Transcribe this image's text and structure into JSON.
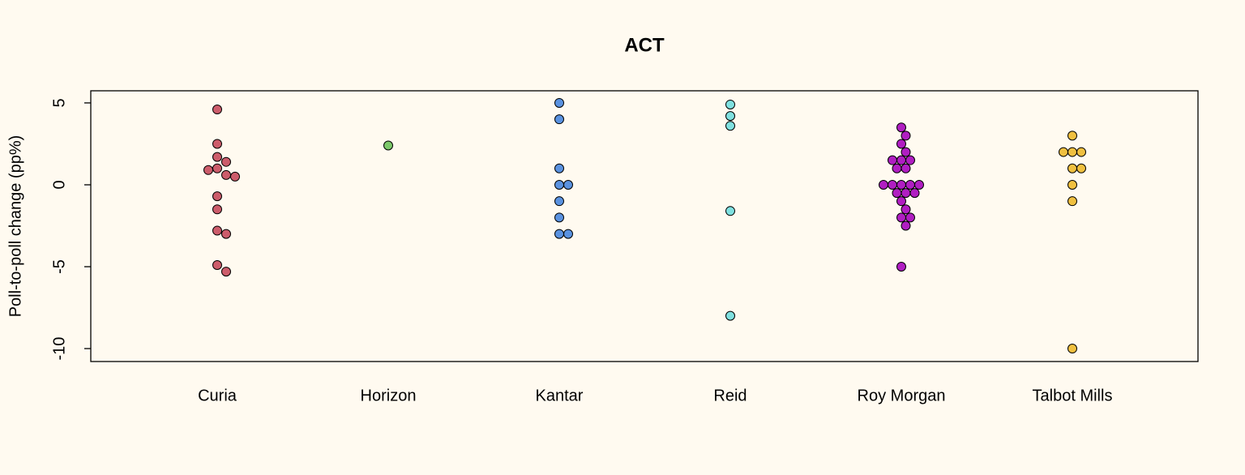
{
  "chart_data": {
    "type": "strip",
    "title": "ACT",
    "y_label": "Poll-to-poll change (pp%)",
    "ylim": [
      -10.79,
      5.74
    ],
    "yticks": [
      -10,
      -5,
      0,
      5
    ],
    "series": [
      {
        "name": "Curia",
        "color": "#cc5c6b",
        "values": [
          4.6,
          2.5,
          1.7,
          1.4,
          1.0,
          0.9,
          0.6,
          0.5,
          -0.7,
          -1.5,
          -2.8,
          -3.0,
          -4.9,
          -5.3
        ]
      },
      {
        "name": "Horizon",
        "color": "#7cc86a",
        "values": [
          2.4
        ]
      },
      {
        "name": "Kantar",
        "color": "#5a92e0",
        "values": [
          5,
          4,
          1,
          0,
          0,
          -1,
          -2,
          -3,
          -3
        ]
      },
      {
        "name": "Reid",
        "color": "#7fe0e0",
        "values": [
          4.9,
          4.2,
          3.6,
          -1.6,
          -8
        ]
      },
      {
        "name": "Roy Morgan",
        "color": "#b01ec2",
        "values": [
          3.5,
          3.0,
          2.5,
          2.0,
          1.5,
          1.5,
          1.5,
          1.0,
          1.0,
          0,
          0,
          0,
          0,
          0,
          -0.5,
          -0.5,
          -0.5,
          -1.0,
          -1.5,
          -2,
          -2,
          -2.5,
          -5
        ]
      },
      {
        "name": "Talbot Mills",
        "color": "#f0c040",
        "values": [
          3,
          2,
          2,
          2,
          1,
          1,
          0,
          -1,
          -10
        ]
      }
    ]
  }
}
